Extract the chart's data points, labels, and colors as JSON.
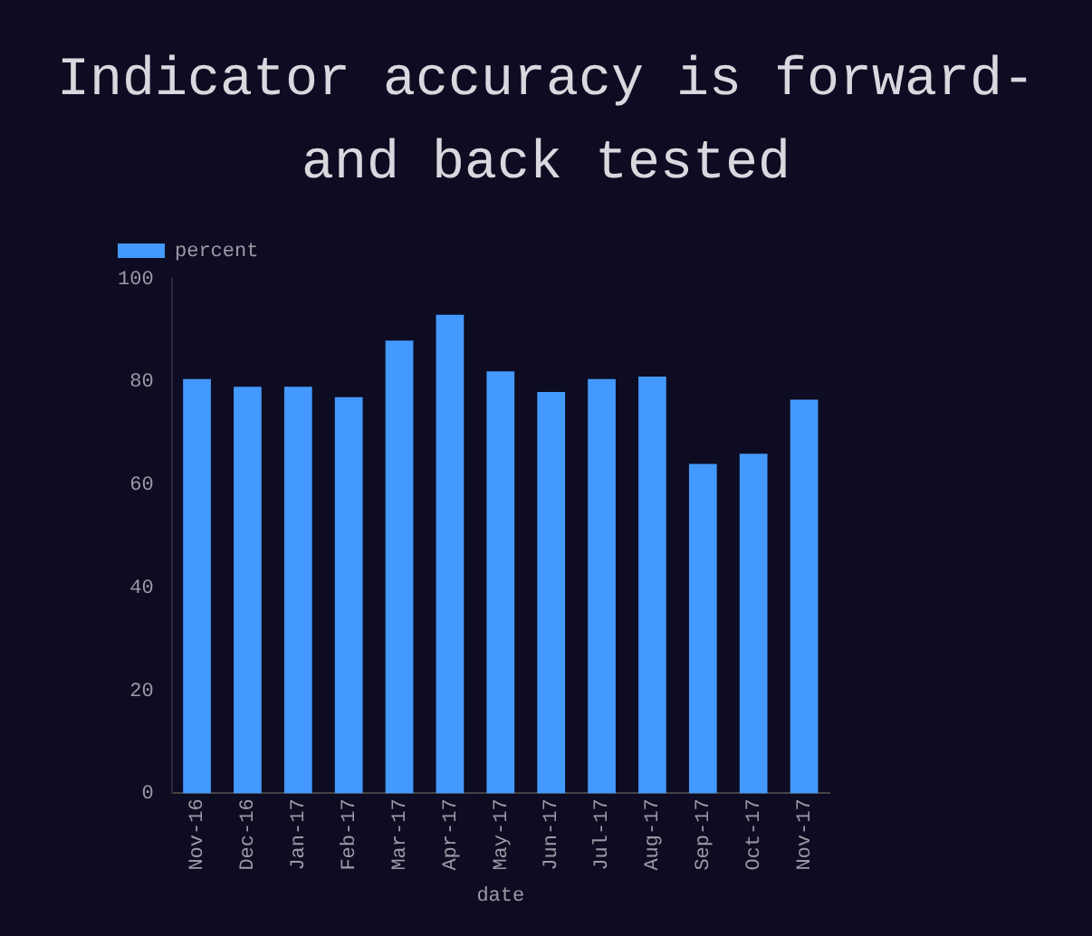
{
  "chart_data": {
    "type": "bar",
    "title": "Indicator accuracy is forward-and back tested",
    "xlabel": "date",
    "categories": [
      "Nov-16",
      "Dec-16",
      "Jan-17",
      "Feb-17",
      "Mar-17",
      "Apr-17",
      "May-17",
      "Jun-17",
      "Jul-17",
      "Aug-17",
      "Sep-17",
      "Oct-17",
      "Nov-17"
    ],
    "series": [
      {
        "name": "percent",
        "color": "#4499ff",
        "values": [
          80.5,
          79,
          79,
          77,
          88,
          93,
          82,
          78,
          80.5,
          81,
          64,
          66,
          76.5
        ]
      }
    ],
    "ylim": [
      0,
      100
    ],
    "yticks": [
      0,
      20,
      40,
      60,
      80,
      100
    ],
    "grid": false,
    "legend": "top left"
  }
}
